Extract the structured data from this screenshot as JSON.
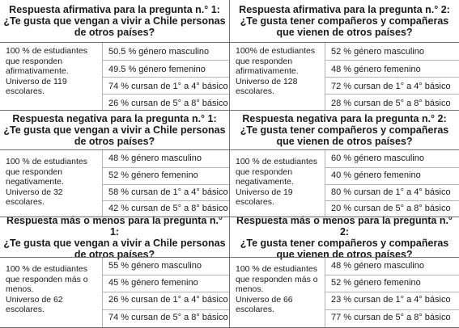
{
  "blocks": [
    {
      "left": {
        "title_1": "Respuesta afirmativa para la pregunta n.° 1:",
        "title_2": "¿Te gusta que vengan a vivir a Chile personas",
        "title_3": "de otros países?",
        "summary_1": "100 % de estudiantes",
        "summary_2": "que responden",
        "summary_3": "afirmativamente.",
        "summary_4": "Universo de 119",
        "summary_5": "escolares.",
        "stats": [
          "50.5 % género masculino",
          "49.5 % género femenino",
          "74 % cursan de 1° a 4° básico",
          "26 % cursan de 5° a 8° básico"
        ]
      },
      "right": {
        "title_1": "Respuesta afirmativa para la pregunta n.° 2:",
        "title_2": "¿Te gusta tener compañeros y compañeras",
        "title_3": "que vienen de otros países?",
        "summary_1": "100% de estudiantes",
        "summary_2": "que responden",
        "summary_3": "afirmativamente.",
        "summary_4": "Universo de 128",
        "summary_5": "escolares.",
        "stats": [
          "52 % género masculino",
          "48 % género femenino",
          "72 % cursan de 1° a 4° básico",
          "28 % cursan de 5° a 8° básico"
        ]
      }
    },
    {
      "left": {
        "title_1": "Respuesta negativa para la pregunta n.° 1:",
        "title_2": "¿Te gusta que vengan a vivir a Chile personas",
        "title_3": "de otros países?",
        "summary_1": "100 % de estudiantes",
        "summary_2": "que responden",
        "summary_3": "negativamente.",
        "summary_4": "Universo de 32",
        "summary_5": "escolares.",
        "stats": [
          "48 % género masculino",
          "52 % género femenino",
          "58 % cursan de 1° a 4° básico",
          "42 % cursan de 5° a 8° básico"
        ]
      },
      "right": {
        "title_1": "Respuesta negativa para la pregunta n.° 2:",
        "title_2": "¿Te gusta tener compañeros y compañeras",
        "title_3": "que vienen de otros países?",
        "summary_1": "100 % de estudiantes",
        "summary_2": "que responden",
        "summary_3": "negativamente.",
        "summary_4": "Universo de 19",
        "summary_5": "escolares.",
        "stats": [
          "60 % género masculino",
          "40 % género femenino",
          "80 % cursan de 1° a 4° básico",
          "20 % cursan de 5° a 8° básico"
        ]
      }
    },
    {
      "left": {
        "title_1": "Respuesta más o menos para la pregunta n.° 1:",
        "title_2": "¿Te gusta que vengan a vivir a Chile personas",
        "title_3": "de otros países?",
        "summary_1": "100 % de estudiantes",
        "summary_2": "que responden más o",
        "summary_3": "menos.",
        "summary_4": "Universo de 62",
        "summary_5": "escolares.",
        "stats": [
          "55 % género masculino",
          "45 % género femenino",
          "26 % cursan de 1° a 4° básico",
          "74 % cursan de 5° a 8° básico"
        ]
      },
      "right": {
        "title_1": "Respuesta más o menos para la pregunta n.° 2:",
        "title_2": "¿Te gusta tener compañeros y compañeras",
        "title_3": "que vienen de otros países?",
        "summary_1": "100 % de estudiantes",
        "summary_2": "que responden más o",
        "summary_3": "menos.",
        "summary_4": "Universo de 66",
        "summary_5": "escolares.",
        "stats": [
          "48 % género masculino",
          "52 % género femenino",
          "23 % cursan de 1° a 4° básico",
          "77 % cursan de 5° a 8° básico"
        ]
      }
    }
  ]
}
